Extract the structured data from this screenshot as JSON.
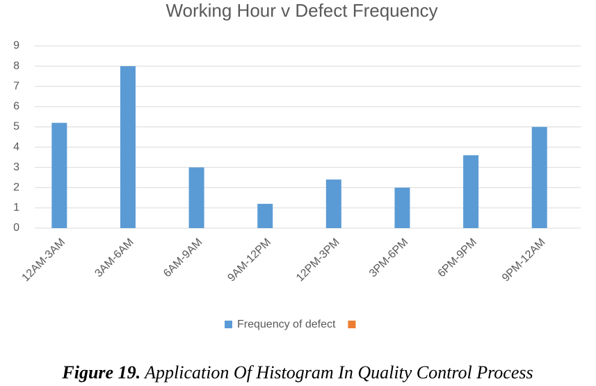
{
  "chart_data": {
    "type": "bar",
    "title": "Working Hour v Defect Frequency",
    "categories": [
      "12AM-3AM",
      "3AM-6AM",
      "6AM-9AM",
      "9AM-12PM",
      "12PM-3PM",
      "3PM-6PM",
      "6PM-9PM",
      "9PM-12AM"
    ],
    "series": [
      {
        "name": "Frequency of defect",
        "color": "#5b9bd5",
        "values": [
          5.2,
          8,
          3,
          1.2,
          2.4,
          2,
          3.6,
          5
        ]
      },
      {
        "color": "#ed7d31",
        "values": [
          null,
          null,
          null,
          null,
          null,
          null,
          null,
          null
        ]
      }
    ],
    "ylim": [
      0,
      9
    ],
    "yticks": [
      0,
      1,
      2,
      3,
      4,
      5,
      6,
      7,
      8,
      9
    ],
    "grid": true,
    "legend": "bottom"
  },
  "caption": {
    "label": "Figure 19.",
    "text": "Application Of Histogram In Quality Control Process"
  }
}
